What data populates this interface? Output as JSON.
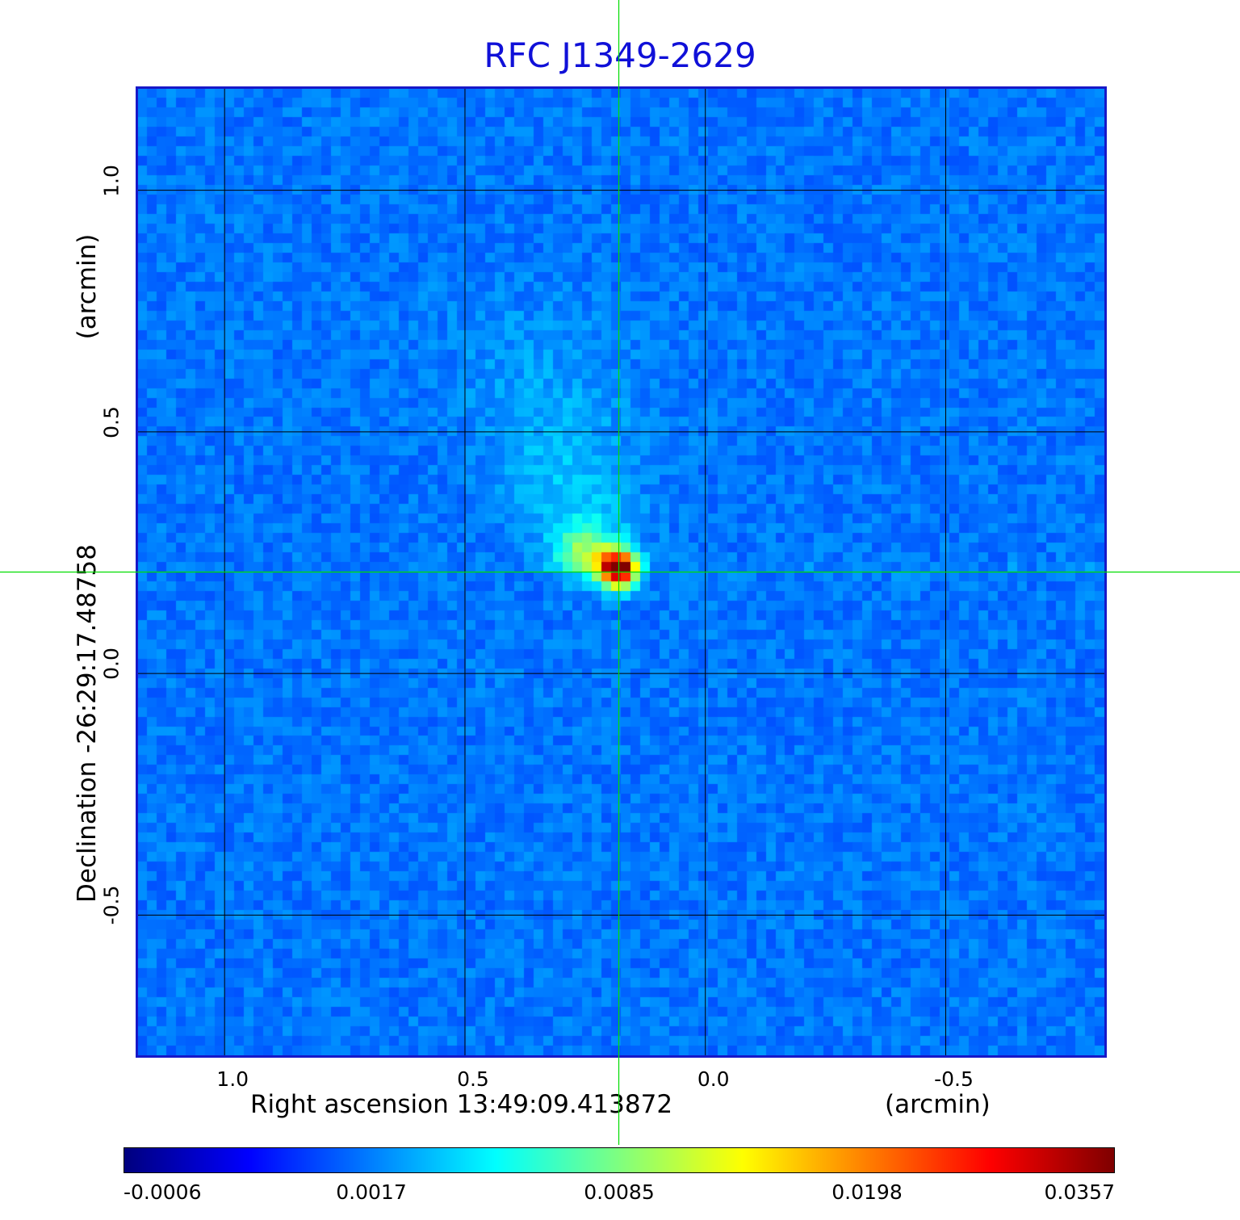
{
  "chart_data": {
    "type": "heatmap",
    "title": "RFC J1349-2629",
    "xlabel": "Right ascension  13:49:09.413872",
    "xunit": "(arcmin)",
    "ylabel": "Declination  -26:29:17.48758",
    "yunit": "(arcmin)",
    "xlim": [
      1.18,
      -0.83
    ],
    "ylim": [
      -0.79,
      1.21
    ],
    "x_ticks": [
      {
        "value": 1.0,
        "label": "1.0"
      },
      {
        "value": 0.5,
        "label": "0.5"
      },
      {
        "value": 0.0,
        "label": "0.0"
      },
      {
        "value": -0.5,
        "label": "-0.5"
      }
    ],
    "y_ticks": [
      {
        "value": 1.0,
        "label": "1.0"
      },
      {
        "value": 0.5,
        "label": "0.5"
      },
      {
        "value": 0.0,
        "label": "0.0"
      },
      {
        "value": -0.5,
        "label": "-0.5"
      }
    ],
    "grid": true,
    "crosshair": {
      "x": 0.18,
      "y": 0.21
    },
    "colormap": "jet",
    "colorbar": {
      "orientation": "horizontal",
      "position": "bottom",
      "tick_labels": [
        "-0.0006",
        "0.0017",
        "0.0085",
        "0.0198",
        "0.0357"
      ],
      "range": [
        -0.0006,
        0.0357
      ]
    },
    "peak": {
      "x": 0.18,
      "y": 0.215,
      "value": 0.0357
    },
    "colors": {
      "title": "#1010d8",
      "frame": "#1818c8",
      "crosshair": "#00dd00",
      "grid": "#000000"
    }
  }
}
